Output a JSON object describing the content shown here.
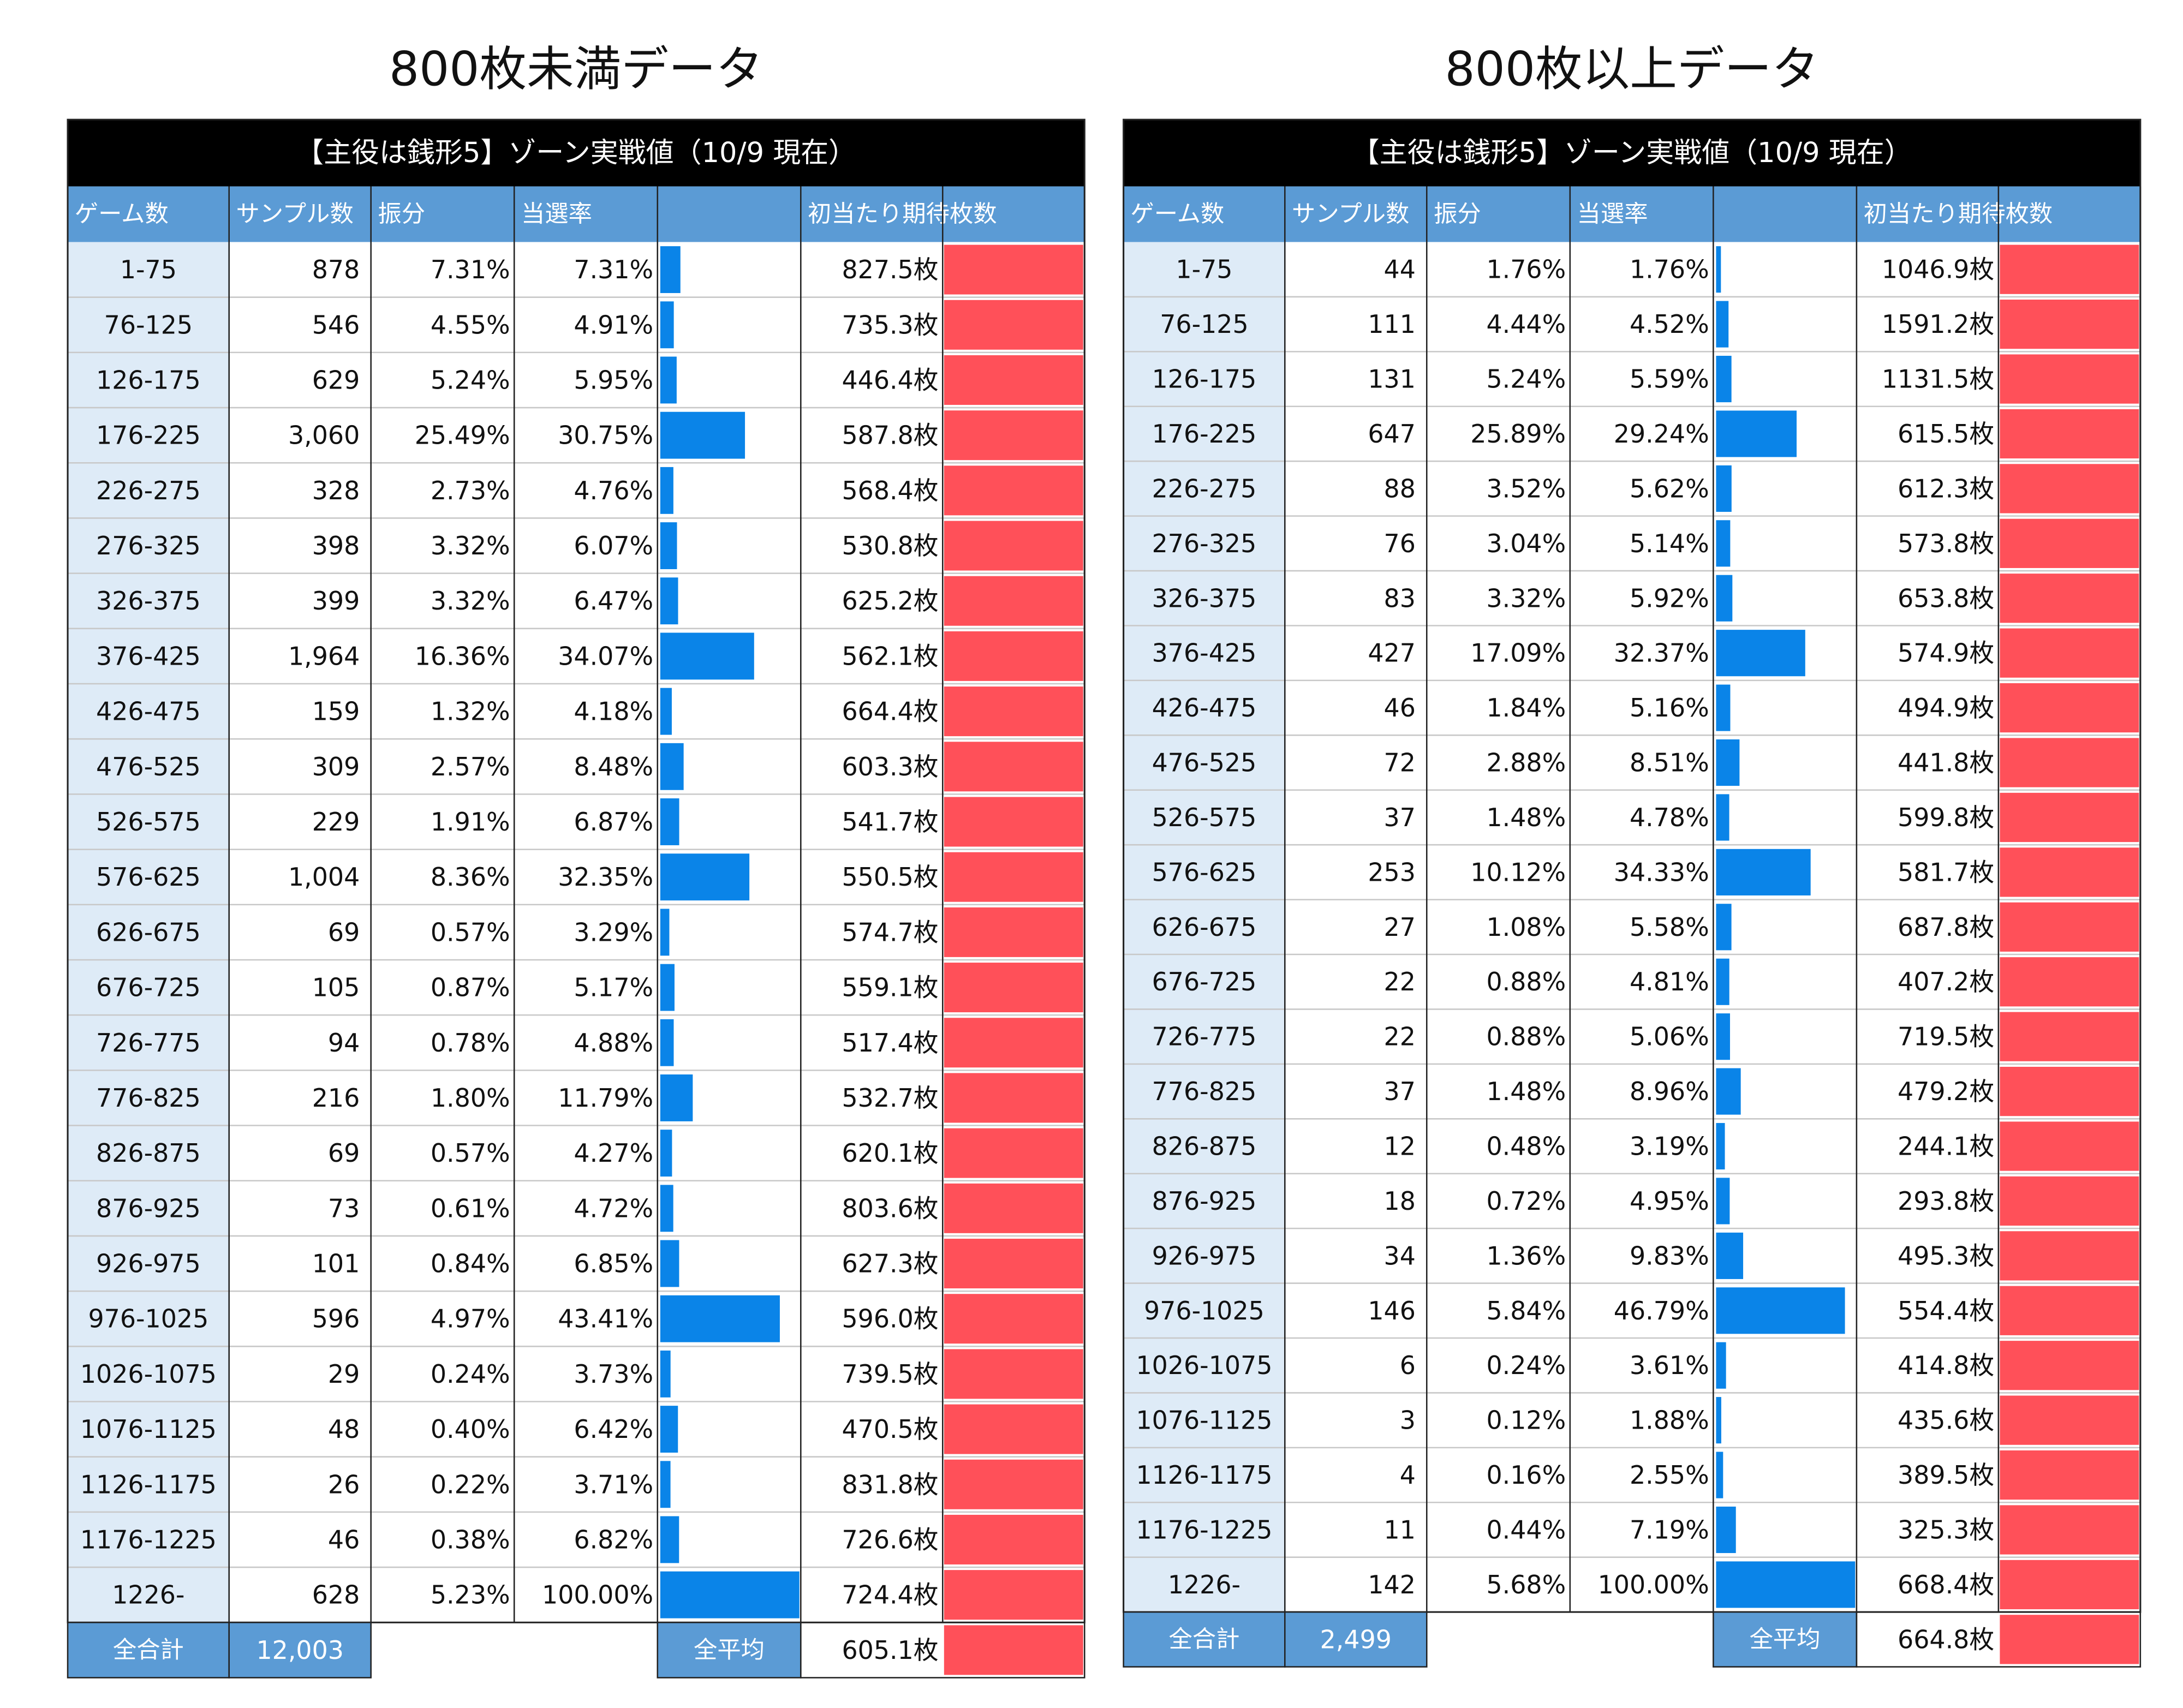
{
  "tables": [
    {
      "heading": "800枚未満データ",
      "title": "【主役は銭形5】ゾーン実戦値（10/9 現在）",
      "columns": [
        "ゲーム数",
        "サンプル数",
        "振分",
        "当選率",
        "初当たり期待枚数"
      ],
      "rows": [
        [
          "1-75",
          "878",
          "7.31%",
          "7.31%",
          "827.5枚"
        ],
        [
          "76-125",
          "546",
          "4.55%",
          "4.91%",
          "735.3枚"
        ],
        [
          "126-175",
          "629",
          "5.24%",
          "5.95%",
          "446.4枚"
        ],
        [
          "176-225",
          "3,060",
          "25.49%",
          "30.75%",
          "587.8枚"
        ],
        [
          "226-275",
          "328",
          "2.73%",
          "4.76%",
          "568.4枚"
        ],
        [
          "276-325",
          "398",
          "3.32%",
          "6.07%",
          "530.8枚"
        ],
        [
          "326-375",
          "399",
          "3.32%",
          "6.47%",
          "625.2枚"
        ],
        [
          "376-425",
          "1,964",
          "16.36%",
          "34.07%",
          "562.1枚"
        ],
        [
          "426-475",
          "159",
          "1.32%",
          "4.18%",
          "664.4枚"
        ],
        [
          "476-525",
          "309",
          "2.57%",
          "8.48%",
          "603.3枚"
        ],
        [
          "526-575",
          "229",
          "1.91%",
          "6.87%",
          "541.7枚"
        ],
        [
          "576-625",
          "1,004",
          "8.36%",
          "32.35%",
          "550.5枚"
        ],
        [
          "626-675",
          "69",
          "0.57%",
          "3.29%",
          "574.7枚"
        ],
        [
          "676-725",
          "105",
          "0.87%",
          "5.17%",
          "559.1枚"
        ],
        [
          "726-775",
          "94",
          "0.78%",
          "4.88%",
          "517.4枚"
        ],
        [
          "776-825",
          "216",
          "1.80%",
          "11.79%",
          "532.7枚"
        ],
        [
          "826-875",
          "69",
          "0.57%",
          "4.27%",
          "620.1枚"
        ],
        [
          "876-925",
          "73",
          "0.61%",
          "4.72%",
          "803.6枚"
        ],
        [
          "926-975",
          "101",
          "0.84%",
          "6.85%",
          "627.3枚"
        ],
        [
          "976-1025",
          "596",
          "4.97%",
          "43.41%",
          "596.0枚"
        ],
        [
          "1026-1075",
          "29",
          "0.24%",
          "3.73%",
          "739.5枚"
        ],
        [
          "1076-1125",
          "48",
          "0.40%",
          "6.42%",
          "470.5枚"
        ],
        [
          "1126-1175",
          "26",
          "0.22%",
          "3.71%",
          "831.8枚"
        ],
        [
          "1176-1225",
          "46",
          "0.38%",
          "6.82%",
          "726.6枚"
        ],
        [
          "1226-",
          "628",
          "5.23%",
          "100.00%",
          "724.4枚"
        ]
      ],
      "total_label": "全合計",
      "total": "12,003",
      "average_label": "全平均",
      "average": "605.1枚"
    },
    {
      "heading": "800枚以上データ",
      "title": "【主役は銭形5】ゾーン実戦値（10/9 現在）",
      "columns": [
        "ゲーム数",
        "サンプル数",
        "振分",
        "当選率",
        "初当たり期待枚数"
      ],
      "rows": [
        [
          "1-75",
          "44",
          "1.76%",
          "1.76%",
          "1046.9枚"
        ],
        [
          "76-125",
          "111",
          "4.44%",
          "4.52%",
          "1591.2枚"
        ],
        [
          "126-175",
          "131",
          "5.24%",
          "5.59%",
          "1131.5枚"
        ],
        [
          "176-225",
          "647",
          "25.89%",
          "29.24%",
          "615.5枚"
        ],
        [
          "226-275",
          "88",
          "3.52%",
          "5.62%",
          "612.3枚"
        ],
        [
          "276-325",
          "76",
          "3.04%",
          "5.14%",
          "573.8枚"
        ],
        [
          "326-375",
          "83",
          "3.32%",
          "5.92%",
          "653.8枚"
        ],
        [
          "376-425",
          "427",
          "17.09%",
          "32.37%",
          "574.9枚"
        ],
        [
          "426-475",
          "46",
          "1.84%",
          "5.16%",
          "494.9枚"
        ],
        [
          "476-525",
          "72",
          "2.88%",
          "8.51%",
          "441.8枚"
        ],
        [
          "526-575",
          "37",
          "1.48%",
          "4.78%",
          "599.8枚"
        ],
        [
          "576-625",
          "253",
          "10.12%",
          "34.33%",
          "581.7枚"
        ],
        [
          "626-675",
          "27",
          "1.08%",
          "5.58%",
          "687.8枚"
        ],
        [
          "676-725",
          "22",
          "0.88%",
          "4.81%",
          "407.2枚"
        ],
        [
          "726-775",
          "22",
          "0.88%",
          "5.06%",
          "719.5枚"
        ],
        [
          "776-825",
          "37",
          "1.48%",
          "8.96%",
          "479.2枚"
        ],
        [
          "826-875",
          "12",
          "0.48%",
          "3.19%",
          "244.1枚"
        ],
        [
          "876-925",
          "18",
          "0.72%",
          "4.95%",
          "293.8枚"
        ],
        [
          "926-975",
          "34",
          "1.36%",
          "9.83%",
          "495.3枚"
        ],
        [
          "976-1025",
          "146",
          "5.84%",
          "46.79%",
          "554.4枚"
        ],
        [
          "1026-1075",
          "6",
          "0.24%",
          "3.61%",
          "414.8枚"
        ],
        [
          "1076-1125",
          "3",
          "0.12%",
          "1.88%",
          "435.6枚"
        ],
        [
          "1126-1175",
          "4",
          "0.16%",
          "2.55%",
          "389.5枚"
        ],
        [
          "1176-1225",
          "11",
          "0.44%",
          "7.19%",
          "325.3枚"
        ],
        [
          "1226-",
          "142",
          "5.68%",
          "100.00%",
          "668.4枚"
        ]
      ],
      "total_label": "全合計",
      "total": "2,499",
      "average_label": "全平均",
      "average": "664.8枚"
    }
  ]
}
